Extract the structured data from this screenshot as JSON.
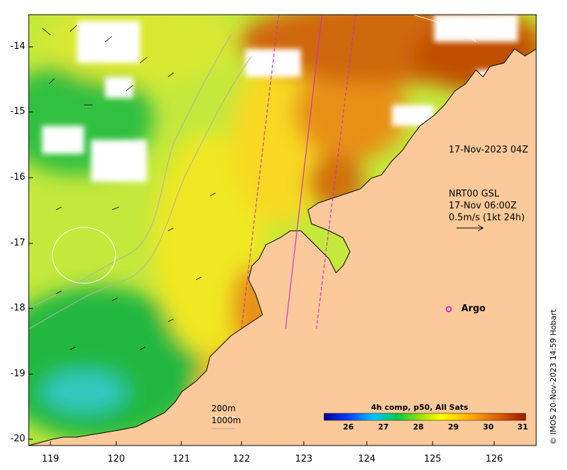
{
  "map": {
    "lon_range": [
      118.6,
      126.75
    ],
    "lat_range": [
      -20.1,
      -13.55
    ],
    "x_ticks": [
      "119",
      "120",
      "121",
      "122",
      "123",
      "124",
      "125",
      "126"
    ],
    "y_ticks": [
      "-14",
      "-15",
      "-16",
      "-17",
      "-18",
      "-19",
      "-20"
    ],
    "colors": {
      "land": "#fcc99a",
      "cloud": "#ffffff",
      "argo": "#e000e0",
      "track": "#cc33cc",
      "coast": "#000000"
    }
  },
  "annotations": {
    "swath_time": "17-Nov-2023 04Z",
    "current_model": "NRT00 GSL",
    "current_time": "17-Nov 06:00Z",
    "current_scale": "0.5m/s (1kt 24h)"
  },
  "argo": {
    "label": "Argo",
    "lon": 125.3,
    "lat": -18.0
  },
  "contours": {
    "label_200m": "200m",
    "label_1000m": "1000m"
  },
  "colorbar": {
    "title": "4h comp, p50, All Sats",
    "ticks": [
      "26",
      "27",
      "28",
      "29",
      "30",
      "31"
    ],
    "range": [
      25.2,
      31.0
    ]
  },
  "credit": "© IMOS 20-Nov-2023 14:59 Hobart"
}
